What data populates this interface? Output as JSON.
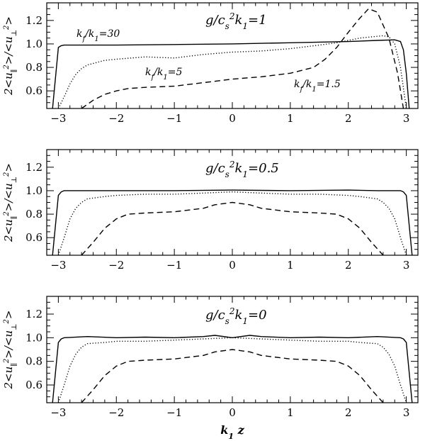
{
  "chart_data": [
    {
      "type": "line",
      "title": "g/c_s^2k_1=1",
      "title_parts": [
        "g/c",
        "s",
        "2",
        "k",
        "1",
        "=1"
      ],
      "ylabel": "2<u_∥^2>/<u_⊥^2>",
      "ylabel_parts": [
        "2<u",
        "∥",
        "2",
        ">/<u",
        "⊥",
        "2",
        ">"
      ],
      "xlim": [
        -3.2,
        3.2
      ],
      "ylim": [
        0.45,
        1.35
      ],
      "xticks": [
        -3,
        -2,
        -1,
        0,
        1,
        2,
        3
      ],
      "xtick_labels": [
        "−3",
        "−2",
        "−1",
        "0",
        "1",
        "2",
        "3"
      ],
      "yticks": [
        0.6,
        0.8,
        1.0,
        1.2
      ],
      "ytick_labels": [
        "0.6",
        "0.8",
        "1.0",
        "1.2"
      ],
      "annotations": [
        {
          "text_parts": [
            "k",
            "f",
            "/k",
            "1",
            "=30"
          ],
          "x": -2.3,
          "y": 1.08
        },
        {
          "text_parts": [
            "k",
            "f",
            "/k",
            "1",
            "=5"
          ],
          "x": -1.3,
          "y": 0.79
        },
        {
          "text_parts": [
            "k",
            "f",
            "/k",
            "1",
            "=1.5"
          ],
          "x": 1.2,
          "y": 0.65
        }
      ],
      "series": [
        {
          "style": "solid",
          "x": [
            -3.1,
            -3.0,
            -2.95,
            -2.9,
            -2.5,
            -2.0,
            -1.0,
            0.0,
            1.0,
            2.0,
            2.5,
            2.8,
            2.9,
            2.95,
            3.0,
            3.05
          ],
          "y": [
            0.45,
            0.97,
            0.985,
            0.99,
            0.99,
            0.99,
            0.995,
            1.0,
            1.01,
            1.02,
            1.03,
            1.035,
            1.02,
            0.95,
            0.75,
            0.45
          ]
        },
        {
          "style": "dotted",
          "x": [
            -3.0,
            -2.9,
            -2.8,
            -2.7,
            -2.6,
            -2.5,
            -2.2,
            -2.0,
            -1.5,
            -1.0,
            -0.5,
            0.0,
            0.5,
            1.0,
            1.5,
            1.8,
            2.0,
            2.2,
            2.4,
            2.6,
            2.7,
            2.8,
            2.9,
            3.0
          ],
          "y": [
            0.45,
            0.55,
            0.66,
            0.74,
            0.79,
            0.82,
            0.86,
            0.87,
            0.89,
            0.88,
            0.91,
            0.93,
            0.94,
            0.96,
            0.99,
            1.01,
            1.03,
            1.05,
            1.06,
            1.07,
            1.06,
            1.0,
            0.8,
            0.45
          ]
        },
        {
          "style": "dashed",
          "x": [
            -2.6,
            -2.4,
            -2.2,
            -2.0,
            -1.8,
            -1.5,
            -1.0,
            -0.5,
            0.0,
            0.5,
            1.0,
            1.4,
            1.6,
            1.8,
            2.0,
            2.2,
            2.35,
            2.5,
            2.7,
            2.85,
            2.95
          ],
          "y": [
            0.45,
            0.52,
            0.57,
            0.6,
            0.62,
            0.63,
            0.64,
            0.67,
            0.7,
            0.72,
            0.75,
            0.8,
            0.87,
            0.97,
            1.1,
            1.22,
            1.3,
            1.27,
            1.05,
            0.75,
            0.45
          ]
        }
      ]
    },
    {
      "type": "line",
      "title": "g/c_s^2k_1=0.5",
      "title_parts": [
        "g/c",
        "s",
        "2",
        "k",
        "1",
        "=0.5"
      ],
      "ylabel": "2<u_∥^2>/<u_⊥^2>",
      "ylabel_parts": [
        "2<u",
        "∥",
        "2",
        ">/<u",
        "⊥",
        "2",
        ">"
      ],
      "xlim": [
        -3.2,
        3.2
      ],
      "ylim": [
        0.45,
        1.35
      ],
      "xticks": [
        -3,
        -2,
        -1,
        0,
        1,
        2,
        3
      ],
      "xtick_labels": [
        "−3",
        "−2",
        "−1",
        "0",
        "1",
        "2",
        "3"
      ],
      "yticks": [
        0.6,
        0.8,
        1.0,
        1.2
      ],
      "ytick_labels": [
        "0.6",
        "0.8",
        "1.0",
        "1.2"
      ],
      "annotations": [],
      "series": [
        {
          "style": "solid",
          "x": [
            -3.1,
            -3.0,
            -2.95,
            -2.9,
            -2.5,
            -2.0,
            -1.0,
            0.0,
            1.0,
            2.0,
            2.5,
            2.9,
            2.95,
            3.0,
            3.1
          ],
          "y": [
            0.45,
            0.96,
            0.99,
            1.0,
            1.0,
            1.0,
            1.0,
            1.005,
            1.0,
            1.005,
            1.0,
            1.0,
            0.99,
            0.96,
            0.45
          ]
        },
        {
          "style": "dotted",
          "x": [
            -3.0,
            -2.9,
            -2.8,
            -2.7,
            -2.6,
            -2.5,
            -2.2,
            -2.0,
            -1.5,
            -1.0,
            -0.5,
            0.0,
            0.5,
            1.0,
            1.5,
            2.0,
            2.2,
            2.5,
            2.6,
            2.7,
            2.8,
            2.9,
            3.0
          ],
          "y": [
            0.45,
            0.6,
            0.76,
            0.85,
            0.9,
            0.93,
            0.95,
            0.96,
            0.97,
            0.97,
            0.98,
            0.99,
            0.98,
            0.97,
            0.97,
            0.96,
            0.95,
            0.93,
            0.9,
            0.85,
            0.76,
            0.6,
            0.45
          ]
        },
        {
          "style": "dashed",
          "x": [
            -2.6,
            -2.4,
            -2.2,
            -2.0,
            -1.8,
            -1.5,
            -1.0,
            -0.5,
            -0.3,
            0.0,
            0.3,
            0.5,
            1.0,
            1.5,
            1.8,
            2.0,
            2.2,
            2.4,
            2.6
          ],
          "y": [
            0.45,
            0.56,
            0.68,
            0.76,
            0.8,
            0.81,
            0.82,
            0.85,
            0.88,
            0.9,
            0.88,
            0.85,
            0.82,
            0.81,
            0.8,
            0.76,
            0.68,
            0.56,
            0.45
          ]
        }
      ]
    },
    {
      "type": "line",
      "title": "g/c_s^2k_1=0",
      "title_parts": [
        "g/c",
        "s",
        "2",
        "k",
        "1",
        "=0"
      ],
      "ylabel": "2<u_∥^2>/<u_⊥^2>",
      "ylabel_parts": [
        "2<u",
        "∥",
        "2",
        ">/<u",
        "⊥",
        "2",
        ">"
      ],
      "xlabel": "k_1 z",
      "xlabel_parts": [
        "k",
        "1",
        " z"
      ],
      "xlim": [
        -3.2,
        3.2
      ],
      "ylim": [
        0.45,
        1.35
      ],
      "xticks": [
        -3,
        -2,
        -1,
        0,
        1,
        2,
        3
      ],
      "xtick_labels": [
        "−3",
        "−2",
        "−1",
        "0",
        "1",
        "2",
        "3"
      ],
      "yticks": [
        0.6,
        0.8,
        1.0,
        1.2
      ],
      "ytick_labels": [
        "0.6",
        "0.8",
        "1.0",
        "1.2"
      ],
      "annotations": [],
      "series": [
        {
          "style": "solid",
          "x": [
            -3.1,
            -3.0,
            -2.95,
            -2.9,
            -2.5,
            -2.0,
            -1.5,
            -1.0,
            -0.5,
            -0.3,
            0.0,
            0.3,
            0.5,
            1.0,
            1.5,
            2.0,
            2.5,
            2.9,
            2.95,
            3.0,
            3.1
          ],
          "y": [
            0.45,
            0.96,
            0.99,
            1.0,
            1.01,
            1.0,
            1.005,
            1.0,
            1.01,
            1.02,
            1.0,
            1.02,
            1.01,
            1.0,
            1.005,
            1.0,
            1.01,
            1.0,
            0.99,
            0.96,
            0.45
          ]
        },
        {
          "style": "dotted",
          "x": [
            -3.0,
            -2.9,
            -2.8,
            -2.7,
            -2.6,
            -2.5,
            -2.2,
            -2.0,
            -1.5,
            -1.0,
            -0.5,
            0.0,
            0.5,
            1.0,
            1.5,
            2.0,
            2.2,
            2.5,
            2.6,
            2.7,
            2.8,
            2.9,
            3.0
          ],
          "y": [
            0.45,
            0.6,
            0.76,
            0.86,
            0.92,
            0.95,
            0.96,
            0.97,
            0.97,
            0.98,
            0.99,
            1.0,
            0.99,
            0.98,
            0.97,
            0.97,
            0.96,
            0.95,
            0.92,
            0.86,
            0.76,
            0.6,
            0.45
          ]
        },
        {
          "style": "dashed",
          "x": [
            -2.6,
            -2.4,
            -2.2,
            -2.0,
            -1.8,
            -1.5,
            -1.0,
            -0.5,
            -0.3,
            0.0,
            0.3,
            0.5,
            1.0,
            1.5,
            1.8,
            2.0,
            2.2,
            2.4,
            2.6
          ],
          "y": [
            0.45,
            0.56,
            0.68,
            0.76,
            0.8,
            0.81,
            0.82,
            0.85,
            0.88,
            0.9,
            0.88,
            0.85,
            0.82,
            0.81,
            0.8,
            0.76,
            0.68,
            0.56,
            0.45
          ]
        }
      ]
    }
  ]
}
